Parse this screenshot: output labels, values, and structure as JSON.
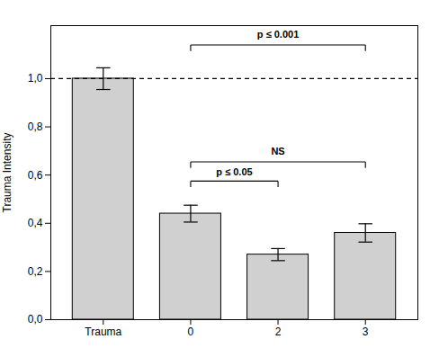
{
  "chart_data": {
    "type": "bar",
    "categories": [
      "Trauma",
      "0",
      "2",
      "3"
    ],
    "values": [
      1.0,
      0.44,
      0.27,
      0.36
    ],
    "errors": [
      0.045,
      0.035,
      0.025,
      0.038
    ],
    "color": "#d0d0d0",
    "ylabel": "Trauma Intensity",
    "ylim": [
      0.0,
      1.22
    ],
    "yticks": [
      {
        "value": 0.0,
        "label": "0,0"
      },
      {
        "value": 0.2,
        "label": "0,2"
      },
      {
        "value": 0.4,
        "label": "0,4"
      },
      {
        "value": 0.6,
        "label": "0,6"
      },
      {
        "value": 0.8,
        "label": "0,8"
      },
      {
        "value": 1.0,
        "label": "1,0"
      }
    ],
    "hline": 1.0,
    "brackets": [
      {
        "x1": "0",
        "x2": "3",
        "y": 1.14,
        "label": "p ≤ 0.001",
        "label_y": 1.17,
        "tick_down": 0.025
      },
      {
        "x1": "0",
        "x2": "2",
        "y": 0.575,
        "label": "p ≤ 0.05",
        "label_y": 0.6,
        "tick_down": 0.025
      },
      {
        "x1": "0",
        "x2": "3",
        "y": 0.655,
        "label": "NS",
        "label_y": 0.685,
        "tick_down": 0.025
      }
    ],
    "grid": false
  }
}
